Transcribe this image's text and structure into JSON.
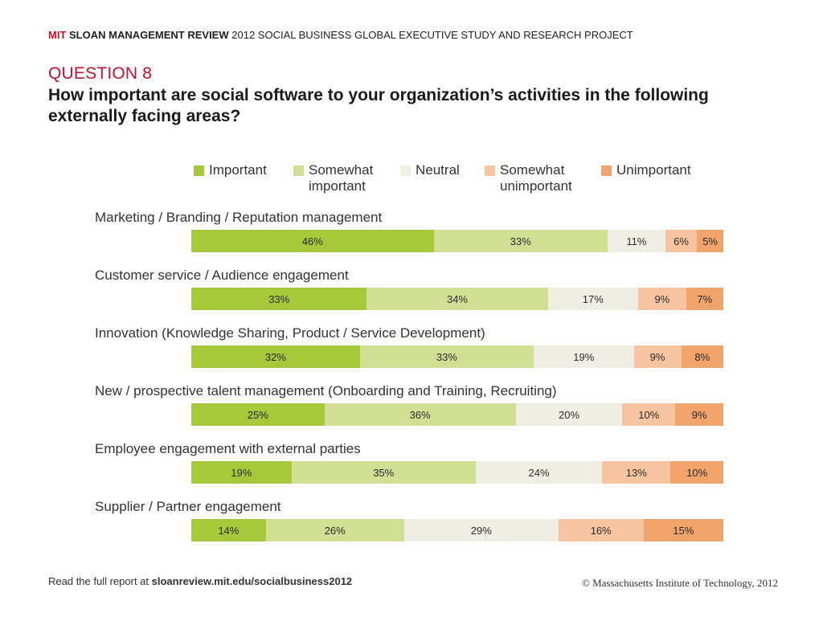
{
  "header": {
    "brand": "MIT",
    "publication": "SLOAN MANAGEMENT REVIEW",
    "study": "2012 SOCIAL BUSINESS GLOBAL EXECUTIVE STUDY AND RESEARCH PROJECT"
  },
  "question": {
    "number": "QUESTION 8",
    "text": "How important are social software to your organization’s activities in the following externally facing areas?"
  },
  "colors": {
    "important": "#a8c83c",
    "somewhat_important": "#d0df94",
    "neutral": "#efede4",
    "somewhat_unimportant": "#f6c4a0",
    "unimportant": "#f0a46c"
  },
  "chart_data": {
    "type": "bar",
    "stacked": true,
    "orientation": "horizontal",
    "legend_position": "top",
    "categories": [
      "Marketing / Branding / Reputation management",
      "Customer service / Audience engagement",
      "Innovation (Knowledge Sharing, Product / Service Development)",
      "New / prospective talent management (Onboarding and Training, Recruiting)",
      "Employee engagement with external parties",
      "Supplier / Partner engagement"
    ],
    "series": [
      {
        "name": "Important",
        "color": "#a8c83c",
        "values": [
          46,
          33,
          32,
          25,
          19,
          14
        ]
      },
      {
        "name": "Somewhat important",
        "color": "#d0df94",
        "values": [
          33,
          34,
          33,
          36,
          35,
          26
        ]
      },
      {
        "name": "Neutral",
        "color": "#efede4",
        "values": [
          11,
          17,
          19,
          20,
          24,
          29
        ]
      },
      {
        "name": "Somewhat unimportant",
        "color": "#f6c4a0",
        "values": [
          6,
          9,
          9,
          10,
          13,
          16
        ]
      },
      {
        "name": "Unimportant",
        "color": "#f0a46c",
        "values": [
          5,
          7,
          8,
          9,
          10,
          15
        ]
      }
    ],
    "value_suffix": "%"
  },
  "legend_labels": {
    "important": "Important",
    "somewhat_important": "Somewhat important",
    "neutral": "Neutral",
    "somewhat_unimportant": "Somewhat unimportant",
    "unimportant": "Unimportant"
  },
  "footer": {
    "read_text": "Read the full report at ",
    "url": "sloanreview.mit.edu/socialbusiness2012",
    "copyright": "© Massachusetts Institute of Technology, 2012"
  }
}
